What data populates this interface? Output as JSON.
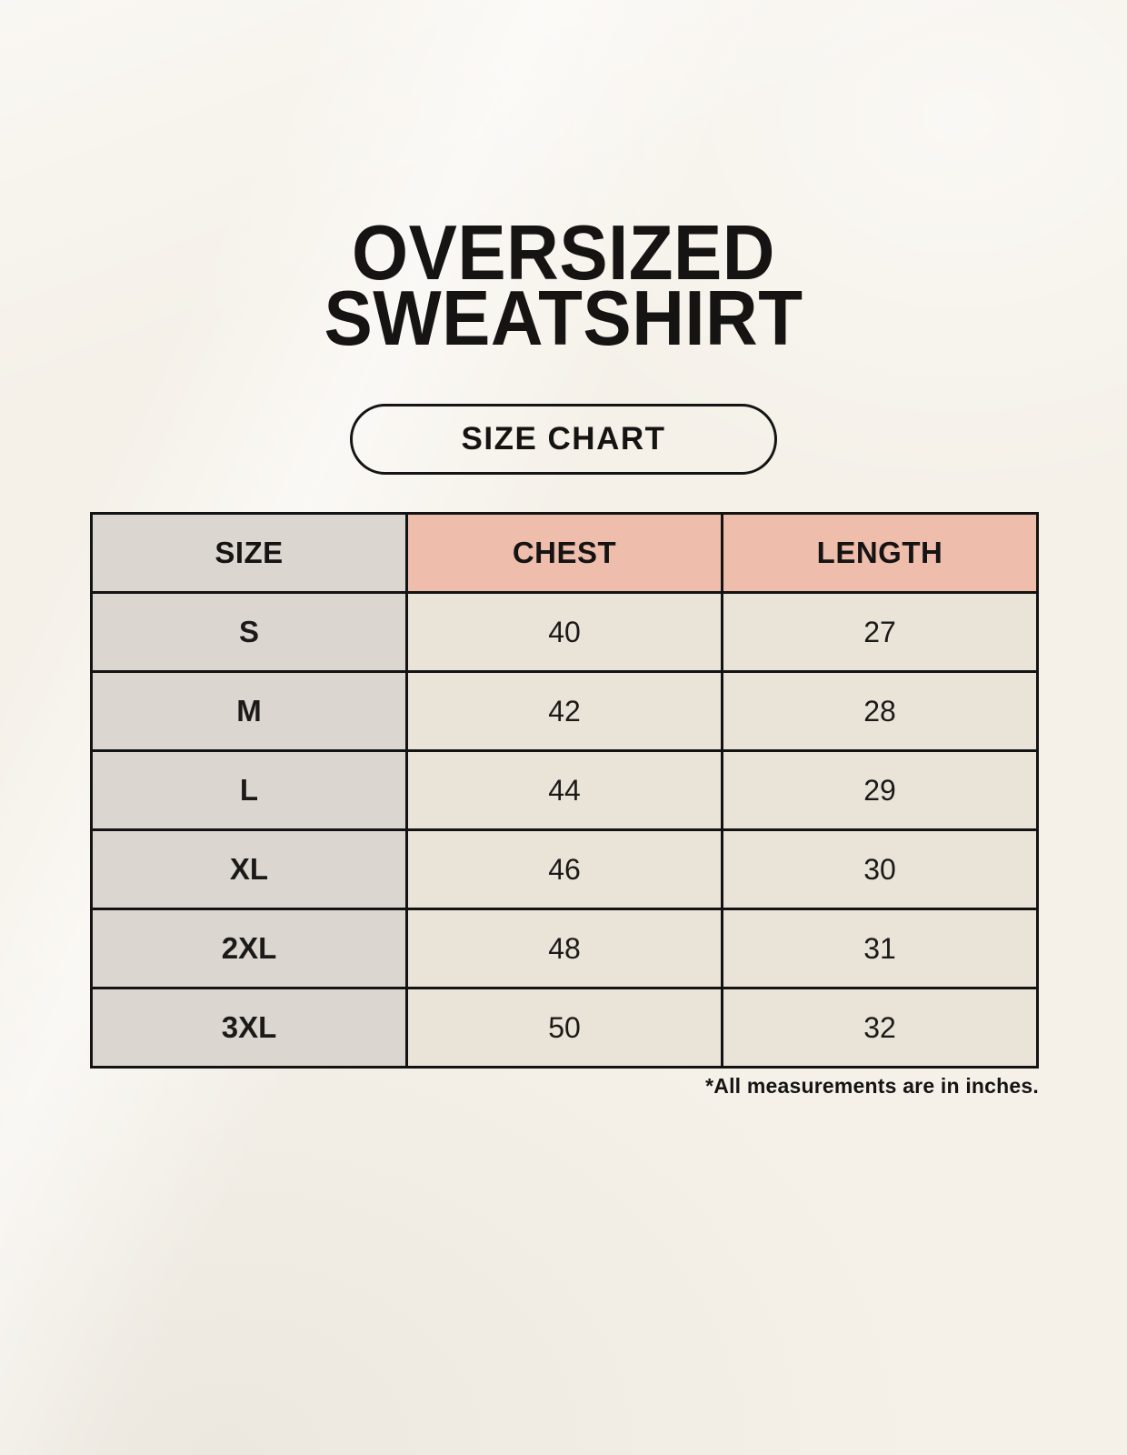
{
  "poster": {
    "title_line1": "OVERSIZED",
    "title_line2": "SWEATSHIRT",
    "badge_label": "SIZE CHART",
    "footnote": "*All measurements are in inches."
  },
  "table": {
    "columns": [
      "SIZE",
      "CHEST",
      "LENGTH"
    ],
    "rows": [
      {
        "size": "S",
        "chest": "40",
        "length": "27"
      },
      {
        "size": "M",
        "chest": "42",
        "length": "28"
      },
      {
        "size": "L",
        "chest": "44",
        "length": "29"
      },
      {
        "size": "XL",
        "chest": "46",
        "length": "30"
      },
      {
        "size": "2XL",
        "chest": "48",
        "length": "31"
      },
      {
        "size": "3XL",
        "chest": "50",
        "length": "32"
      }
    ]
  },
  "colors": {
    "background": "#F5F1E9",
    "accent_header": "#EEBDAC",
    "size_column": "#DCD6D1",
    "data_cell": "#EAE4D8",
    "border": "#131313",
    "text": "#1C1A19"
  }
}
